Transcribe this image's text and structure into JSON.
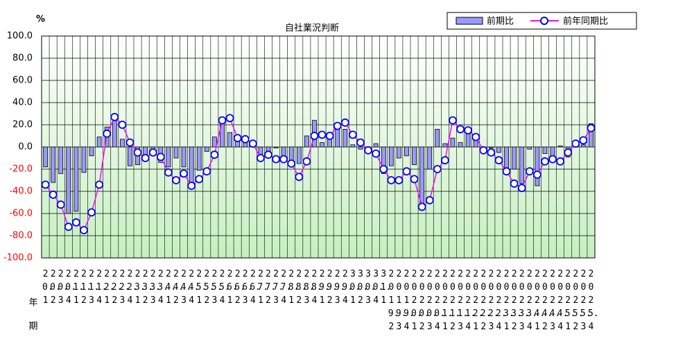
{
  "chart_data": {
    "type": "bar-line",
    "title": "自社業況判断",
    "unit_label": "%",
    "x_row_labels": [
      "年",
      "期"
    ],
    "categories": [
      "20.1",
      "20.2",
      "20.3",
      "20.4",
      "21.1",
      "21.2",
      "21.3",
      "21.4",
      "22.1",
      "22.2",
      "22.3",
      "22.4",
      "23.1",
      "23.2",
      "23.3",
      "23.4",
      "24.1",
      "24.2",
      "24.3",
      "24.4",
      "25.1",
      "25.2",
      "25.3",
      "25.4",
      "26.1",
      "26.2",
      "26.3",
      "26.4",
      "27.1",
      "27.2",
      "27.3",
      "27.4",
      "28.1",
      "28.2",
      "28.3",
      "28.4",
      "29.1",
      "29.2",
      "29.3",
      "29.4",
      "30.1",
      "30.2",
      "30.3",
      "30.4",
      "31.1",
      "2019.2",
      "2019.3",
      "2019.4",
      "2020.1",
      "2020.2",
      "2020.3",
      "2020.4",
      "2021.1",
      "2021.2",
      "2021.3",
      "2021.4",
      "2022.1",
      "2022.2",
      "2022.3",
      "2022.4",
      "2023.1",
      "2023.2",
      "2023.3",
      "2023.4",
      "2024.1",
      "2024.2",
      "2024.3",
      "2024.4",
      "2025.1",
      "2025.2",
      "2025.3",
      "2025.4"
    ],
    "series": [
      {
        "name": "前期比",
        "kind": "bar",
        "color": "#9999ff",
        "edge_color": "#000000",
        "values": [
          -18,
          -32,
          -24,
          -60,
          -58,
          -23,
          -8,
          9,
          18,
          24,
          7,
          -17,
          -16,
          -10,
          -5,
          -14,
          -18,
          -10,
          -18,
          -33,
          -21,
          -4,
          9,
          23,
          13,
          7,
          4,
          2,
          -9,
          -6,
          -1,
          -9,
          -16,
          -15,
          10,
          24,
          4,
          13,
          21,
          16,
          2,
          -2,
          -4,
          3,
          -24,
          -17,
          -10,
          -8,
          -16,
          -52,
          -20,
          16,
          3,
          8,
          4,
          12,
          10,
          -4,
          -1,
          -5,
          -20,
          -20,
          -33,
          -2,
          -35,
          -6,
          -8,
          1,
          -9,
          0,
          2,
          21
        ]
      },
      {
        "name": "前年同期比",
        "kind": "line",
        "color": "#ff00ff",
        "marker_color": "#0000ff",
        "values": [
          -34,
          -43,
          -52,
          -72,
          -68,
          -75,
          -59,
          -34,
          12,
          27,
          20,
          4,
          -5,
          -10,
          -5,
          -9,
          -23,
          -30,
          -24,
          -35,
          -29,
          -22,
          -7,
          24,
          26,
          8,
          7,
          3,
          -10,
          -7,
          -11,
          -11,
          -15,
          -27,
          -13,
          10,
          11,
          10,
          19,
          22,
          11,
          4,
          -3,
          -6,
          -20,
          -30,
          -30,
          -22,
          -29,
          -54,
          -48,
          -20,
          -12,
          24,
          16,
          15,
          9,
          -3,
          -5,
          -12,
          -22,
          -33,
          -37,
          -22,
          -25,
          -13,
          -11,
          -13,
          -5,
          3,
          6,
          17
        ]
      }
    ],
    "ylim": [
      -100,
      100
    ],
    "yticks": [
      {
        "value": -100,
        "label": "-100.0"
      },
      {
        "value": -80,
        "label": "-80.0"
      },
      {
        "value": -60,
        "label": "-60.0"
      },
      {
        "value": -40,
        "label": "-40.0"
      },
      {
        "value": -20,
        "label": "-20.0"
      },
      {
        "value": 0,
        "label": "0.0"
      },
      {
        "value": 20,
        "label": "20.0"
      },
      {
        "value": 40,
        "label": "40.0"
      },
      {
        "value": 60,
        "label": "60.0"
      },
      {
        "value": 80,
        "label": "80.0"
      },
      {
        "value": 100,
        "label": "100.0"
      }
    ],
    "grid": true,
    "negative_tick_color": "#ff0000",
    "legend": "top-right"
  }
}
